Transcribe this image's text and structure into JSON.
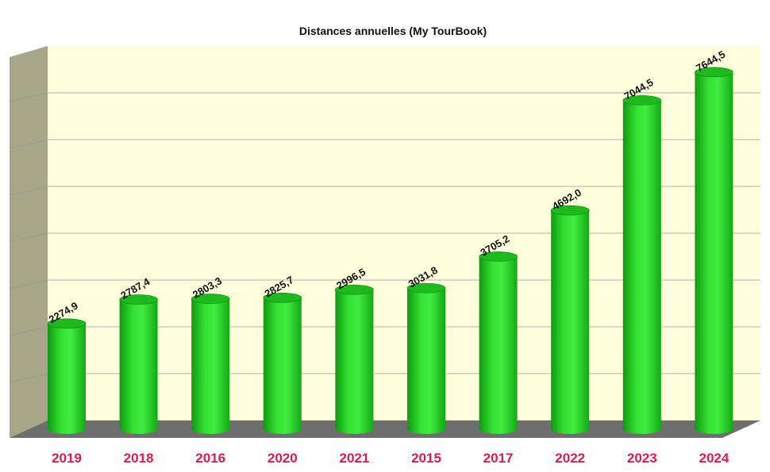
{
  "chart_data": {
    "type": "bar",
    "style": "3d-cylinder",
    "title": "Distances annuelles (My TourBook)",
    "xlabel": "",
    "ylabel": "",
    "categories": [
      "2019",
      "2018",
      "2016",
      "2020",
      "2021",
      "2015",
      "2017",
      "2022",
      "2023",
      "2024"
    ],
    "values": [
      2274.9,
      2787.4,
      2803.3,
      2825.7,
      2996.5,
      3031.8,
      3705.2,
      4692.0,
      7044.5,
      7644.5
    ],
    "value_labels": [
      "2274,9",
      "2787,4",
      "2803,3",
      "2825,7",
      "2996,5",
      "3031,8",
      "3705,2",
      "4692,0",
      "7044,5",
      "7644,5"
    ],
    "ylim": [
      0,
      8000
    ],
    "grid": true,
    "legend": "none",
    "colors": {
      "bar": "#2ed82e",
      "bar_dark": "#0a8a0a",
      "bar_top": "#1fb81f",
      "plot_background": "#ffffdd",
      "back_wall": "#ffffdd",
      "side_wall": "#a8a688",
      "floor": "#6e6e6e",
      "gridline": "#999999",
      "category_label": "#d81e4a",
      "value_label": "#111111"
    }
  }
}
